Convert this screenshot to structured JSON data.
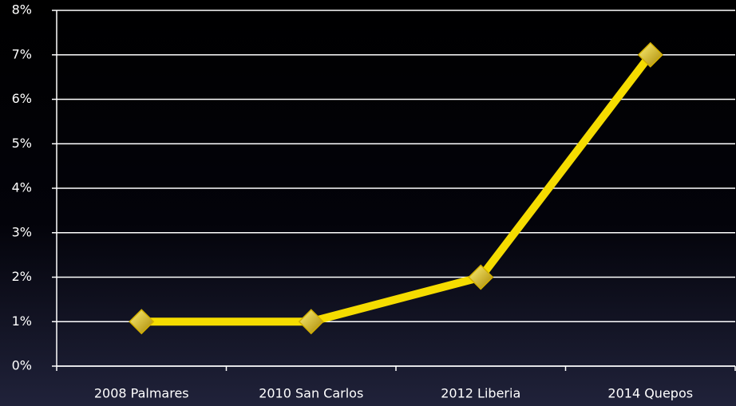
{
  "chart_data": {
    "type": "line",
    "categories": [
      "2008 Palmares",
      "2010 San Carlos",
      "2012 Liberia",
      "2014 Quepos"
    ],
    "values": [
      1,
      1,
      2,
      7
    ],
    "color": "#f5dc00",
    "marker_color": "#d4b000",
    "ylim": [
      0,
      8
    ],
    "yticks": [
      {
        "value": 0,
        "label": "0%"
      },
      {
        "value": 1,
        "label": "1%"
      },
      {
        "value": 2,
        "label": "2%"
      },
      {
        "value": 3,
        "label": "3%"
      },
      {
        "value": 4,
        "label": "4%"
      },
      {
        "value": 5,
        "label": "5%"
      },
      {
        "value": 6,
        "label": "6%"
      },
      {
        "value": 7,
        "label": "7%"
      },
      {
        "value": 8,
        "label": "8%"
      }
    ],
    "grid": true
  }
}
